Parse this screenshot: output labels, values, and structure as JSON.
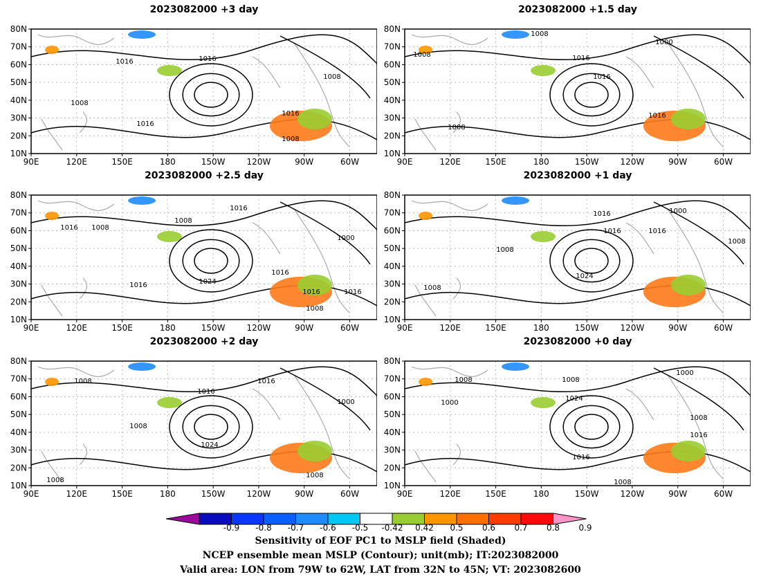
{
  "panels": [
    {
      "title": "2023082000 +3 day",
      "contour_labels": [
        "1016",
        "1016",
        "1008",
        "1016",
        "1008",
        "1016",
        "1008"
      ]
    },
    {
      "title": "2023082000 +1.5 day",
      "contour_labels": [
        "1008",
        "1000",
        "1008",
        "1016",
        "1016",
        "1016",
        "1008"
      ]
    },
    {
      "title": "2023082000 +2.5 day",
      "contour_labels": [
        "1016",
        "1008",
        "1008",
        "1016",
        "1000",
        "1016",
        "1024",
        "1016",
        "1016",
        "1016",
        "1008"
      ]
    },
    {
      "title": "2023082000 +1 day",
      "contour_labels": [
        "1016",
        "1000",
        "1016",
        "1008",
        "1016",
        "1008",
        "1024",
        "1008"
      ]
    },
    {
      "title": "2023082000 +2 day",
      "contour_labels": [
        "1008",
        "1016",
        "1016",
        "1000",
        "1008",
        "1024",
        "1008",
        "1008"
      ]
    },
    {
      "title": "2023082000 +0 day",
      "contour_labels": [
        "1008",
        "1008",
        "1000",
        "1024",
        "1000",
        "1008",
        "1016",
        "1016",
        "1008"
      ]
    }
  ],
  "axes": {
    "lat_labels": [
      "80N",
      "70N",
      "60N",
      "50N",
      "40N",
      "30N",
      "20N",
      "10N"
    ],
    "lon_labels": [
      "90E",
      "120E",
      "150E",
      "180",
      "150W",
      "120W",
      "90W",
      "60W"
    ]
  },
  "colorbar": {
    "labels": [
      "-0.9",
      "-0.8",
      "-0.7",
      "-0.6",
      "-0.5",
      "-0.42",
      "0.42",
      "0.5",
      "0.6",
      "0.7",
      "0.8",
      "0.9"
    ],
    "colors": [
      "#9b0a9b",
      "#0a0abf",
      "#0a37ff",
      "#0a5fff",
      "#1e8cff",
      "#00c8f5",
      "#ffffff",
      "#9acd32",
      "#ff9600",
      "#ff6e00",
      "#ff3c00",
      "#ff0a0a",
      "#ff96c8"
    ]
  },
  "caption": {
    "line1": "Sensitivity of EOF PC1 to MSLP field (Shaded)",
    "line2": "NCEP ensemble mean MSLP (Contour); unit(mb); IT:2023082000",
    "line3": "Valid area: LON from 79W to 62W, LAT from 32N to 45N; VT: 2023082600"
  }
}
